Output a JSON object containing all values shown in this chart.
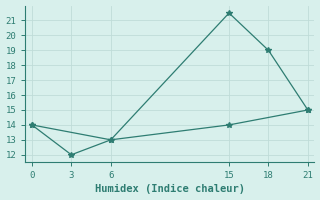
{
  "line1_x": [
    0,
    6,
    15,
    18,
    21
  ],
  "line1_y": [
    14,
    13,
    21.5,
    19,
    15
  ],
  "line2_x": [
    0,
    3,
    6,
    15,
    21
  ],
  "line2_y": [
    14,
    12,
    13,
    14,
    15
  ],
  "line_color": "#2e7d72",
  "marker": "*",
  "marker_size": 4,
  "bg_color": "#d8f0ec",
  "grid_color": "#c0dcd8",
  "xlabel": "Humidex (Indice chaleur)",
  "xlim": [
    -0.5,
    21.5
  ],
  "ylim": [
    11.5,
    22
  ],
  "xticks": [
    0,
    3,
    6,
    15,
    18,
    21
  ],
  "yticks": [
    12,
    13,
    14,
    15,
    16,
    17,
    18,
    19,
    20,
    21
  ],
  "font_family": "monospace",
  "tick_fontsize": 6.5,
  "xlabel_fontsize": 7.5
}
